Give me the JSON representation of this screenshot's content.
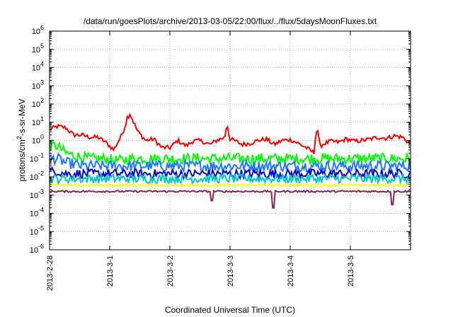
{
  "chart_data": {
    "type": "line",
    "title": "/data/run/goesPlots/archive/2013-03-05/22:00/flux/../flux/5daysMoonFluxes.txt",
    "xlabel": "Coordinated Universal Time (UTC)",
    "ylabel": "protons/cm²-s-sr-MeV",
    "ylabel_parts": [
      "protons/cm",
      "2",
      "-s-sr-MeV"
    ],
    "yscale": "log",
    "ylim_exp": [
      -6,
      6
    ],
    "ytick_exponents": [
      -6,
      -5,
      -4,
      -3,
      -2,
      -1,
      0,
      1,
      2,
      3,
      4,
      5,
      6
    ],
    "ytick_base": "10",
    "x_range_days": [
      "2013-2-28",
      "2013-3-6"
    ],
    "xticks": [
      "2013-2-28",
      "2013-3-1",
      "2013-3-2",
      "2013-3-3",
      "2013-3-4",
      "2013-3-5"
    ],
    "grid": true,
    "legend": "none",
    "series_points_per_day": 48,
    "series": [
      {
        "color": "#ff0000",
        "approx_values": [
          4.0,
          6.0,
          5.0,
          2.0,
          2.0,
          1.5,
          1.5,
          0.8,
          0.3,
          2.0,
          30,
          3.0,
          1.0,
          1.2,
          0.4,
          0.4,
          1.0,
          0.5,
          1.0,
          0.9,
          0.6,
          1.1,
          1.5,
          1.0,
          0.6,
          0.7,
          1.0,
          1.2,
          0.6,
          1.0,
          1.1,
          0.7,
          0.4,
          0.2,
          0.6,
          0.9,
          0.8,
          1.2,
          0.9,
          1.0,
          1.2,
          1.5,
          1.3,
          1.8,
          1.5,
          0.6
        ],
        "spikes": [
          {
            "x": 1.3,
            "y": 30
          },
          {
            "x": 2.95,
            "y": 8
          },
          {
            "x": 4.45,
            "y": 5
          }
        ]
      },
      {
        "color": "#00ff00",
        "approx_values": [
          0.5,
          0.5,
          0.2,
          0.15,
          0.12,
          0.1,
          0.1,
          0.1,
          0.08,
          0.08,
          0.1,
          0.1,
          0.1,
          0.1,
          0.1,
          0.1,
          0.1,
          0.1,
          0.1,
          0.1,
          0.1,
          0.1,
          0.1,
          0.1,
          0.1,
          0.1,
          0.1,
          0.1,
          0.1,
          0.1,
          0.1,
          0.1,
          0.1,
          0.1,
          0.1,
          0.1,
          0.1,
          0.1,
          0.1,
          0.1,
          0.1,
          0.1,
          0.1,
          0.1,
          0.1,
          0.1
        ]
      },
      {
        "color": "#1e78ff",
        "approx_values": [
          0.1,
          0.1,
          0.06,
          0.05,
          0.04,
          0.04,
          0.04,
          0.04,
          0.04,
          0.04,
          0.04,
          0.04,
          0.04,
          0.04,
          0.04,
          0.04,
          0.04,
          0.04,
          0.04,
          0.04,
          0.04,
          0.04,
          0.04,
          0.04,
          0.04,
          0.04,
          0.04,
          0.04,
          0.04,
          0.04,
          0.04,
          0.04,
          0.04,
          0.04,
          0.04,
          0.04,
          0.04,
          0.04,
          0.04,
          0.04,
          0.04,
          0.04,
          0.04,
          0.04,
          0.04,
          0.04
        ]
      },
      {
        "color": "#0000cc",
        "approx_values": [
          0.02,
          0.02,
          0.015,
          0.015,
          0.015,
          0.015,
          0.015,
          0.015,
          0.015,
          0.015,
          0.015,
          0.015,
          0.015,
          0.015,
          0.015,
          0.015,
          0.015,
          0.015,
          0.015,
          0.015,
          0.015,
          0.015,
          0.015,
          0.015,
          0.015,
          0.015,
          0.015,
          0.015,
          0.015,
          0.015,
          0.015,
          0.015,
          0.015,
          0.015,
          0.015,
          0.015,
          0.015,
          0.015,
          0.015,
          0.015,
          0.015,
          0.015,
          0.015,
          0.015,
          0.015,
          0.015
        ]
      },
      {
        "color": "#00c8c8",
        "approx_values": [
          0.008,
          0.008,
          0.008,
          0.008,
          0.008,
          0.008,
          0.008,
          0.008,
          0.008,
          0.008,
          0.008,
          0.008,
          0.008,
          0.008,
          0.008,
          0.008,
          0.008,
          0.008,
          0.008,
          0.008,
          0.008,
          0.008,
          0.008,
          0.008,
          0.008,
          0.008,
          0.008,
          0.008,
          0.008,
          0.008,
          0.008,
          0.008,
          0.008,
          0.008,
          0.008,
          0.008,
          0.008,
          0.008,
          0.008,
          0.008,
          0.008,
          0.008,
          0.008,
          0.008,
          0.008,
          0.008
        ]
      },
      {
        "color": "#ffff00",
        "approx_values": [
          0.0035,
          0.0035,
          0.0035,
          0.0035,
          0.0035,
          0.0035,
          0.0035,
          0.0035,
          0.0035,
          0.0035,
          0.0035,
          0.0035,
          0.0035,
          0.0035,
          0.0035,
          0.0035,
          0.0035,
          0.0035,
          0.0035,
          0.0035,
          0.0035,
          0.0035,
          0.0035,
          0.0035,
          0.0035,
          0.0035,
          0.0035,
          0.0035,
          0.0035,
          0.0035,
          0.0035,
          0.0035,
          0.0035,
          0.0035,
          0.0035,
          0.0035,
          0.0035,
          0.0035,
          0.0035,
          0.0035,
          0.0035,
          0.0035,
          0.0035,
          0.0035,
          0.0035,
          0.0035
        ]
      },
      {
        "color": "#8b2252",
        "approx_values": [
          0.0016,
          0.0016,
          0.0016,
          0.0016,
          0.0016,
          0.0016,
          0.0016,
          0.0016,
          0.0016,
          0.0016,
          0.0016,
          0.0016,
          0.0016,
          0.0016,
          0.0016,
          0.0016,
          0.0016,
          0.0016,
          0.0016,
          0.0016,
          0.0016,
          0.0016,
          0.0016,
          0.0016,
          0.0016,
          0.0016,
          0.0016,
          0.0016,
          0.0016,
          0.0016,
          0.0016,
          0.0016,
          0.0016,
          0.0016,
          0.0016,
          0.0016,
          0.0016,
          0.0016,
          0.0016,
          0.0016,
          0.0016,
          0.0016,
          0.0016,
          0.0016,
          0.0016,
          0.0016
        ],
        "dips": [
          {
            "x": 2.7,
            "y": 0.0005
          },
          {
            "x": 3.72,
            "y": 0.0002
          },
          {
            "x": 5.7,
            "y": 0.0003
          }
        ]
      }
    ]
  }
}
